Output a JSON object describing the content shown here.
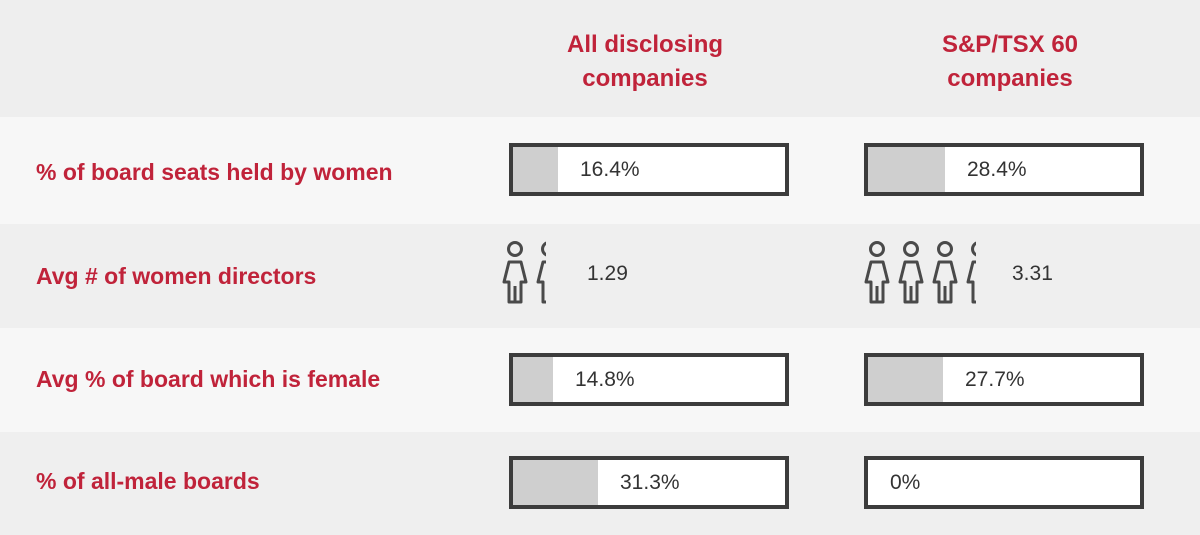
{
  "chart_data": {
    "type": "bar",
    "columns": [
      {
        "lines": [
          "All disclosing",
          "companies"
        ]
      },
      {
        "lines": [
          "S&P/TSX 60",
          "companies"
        ]
      }
    ],
    "rows": [
      {
        "label": "% of board seats held by women",
        "kind": "bar",
        "values": [
          16.4,
          28.4
        ],
        "display": [
          "16.4%",
          "28.4%"
        ]
      },
      {
        "label": "Avg # of women directors",
        "kind": "icons",
        "values": [
          1.29,
          3.31
        ],
        "display": [
          "1.29",
          "3.31"
        ]
      },
      {
        "label": "Avg % of board which is female",
        "kind": "bar",
        "values": [
          14.8,
          27.7
        ],
        "display": [
          "14.8%",
          "27.7%"
        ]
      },
      {
        "label": "% of all-male boards",
        "kind": "bar",
        "values": [
          31.3,
          0
        ],
        "display": [
          "31.3%",
          "0%"
        ]
      }
    ],
    "ylim": [
      0,
      100
    ],
    "colors": {
      "accent": "#c0233a",
      "fill": "#cfcfcf",
      "border": "#3c3c3c",
      "icon": "#4a4a4a"
    },
    "icon": "female-person-icon"
  }
}
